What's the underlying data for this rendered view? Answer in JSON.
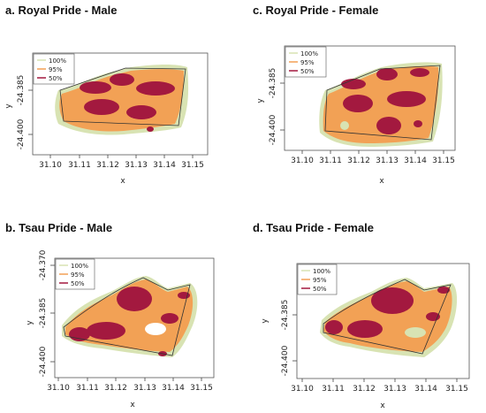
{
  "colors": {
    "c100": "#d8e3b3",
    "c95": "#f2a155",
    "c50": "#a3193f",
    "outline": "#333333",
    "frame": "#555555"
  },
  "chart_data": [
    {
      "title": "a. Royal Pride - Male",
      "type": "contour",
      "xlabel": "x",
      "ylabel": "y",
      "xticks": [
        "31.10",
        "31.11",
        "31.12",
        "31.13",
        "31.14",
        "31.15"
      ],
      "yticks": [
        "-24.385",
        "-24.400"
      ],
      "legend": [
        "100%",
        "95%",
        "50%"
      ]
    },
    {
      "title": "c. Royal Pride - Female",
      "type": "contour",
      "xlabel": "x",
      "ylabel": "y",
      "xticks": [
        "31.10",
        "31.11",
        "31.12",
        "31.13",
        "31.14",
        "31.15"
      ],
      "yticks": [
        "-24.385",
        "-24.400"
      ],
      "legend": [
        "100%",
        "95%",
        "50%"
      ]
    },
    {
      "title": "b. Tsau Pride - Male",
      "type": "contour",
      "xlabel": "x",
      "ylabel": "y",
      "xticks": [
        "31.10",
        "31.11",
        "31.12",
        "31.13",
        "31.14",
        "31.15"
      ],
      "yticks": [
        "-24.370",
        "-24.385",
        "-24.400"
      ],
      "legend": [
        "100%",
        "95%",
        "50%"
      ]
    },
    {
      "title": "d. Tsau Pride - Female",
      "type": "contour",
      "xlabel": "x",
      "ylabel": "y",
      "xticks": [
        "31.10",
        "31.11",
        "31.12",
        "31.13",
        "31.14",
        "31.15"
      ],
      "yticks": [
        "-24.385",
        "-24.400"
      ],
      "legend": [
        "100%",
        "95%",
        "50%"
      ]
    }
  ]
}
